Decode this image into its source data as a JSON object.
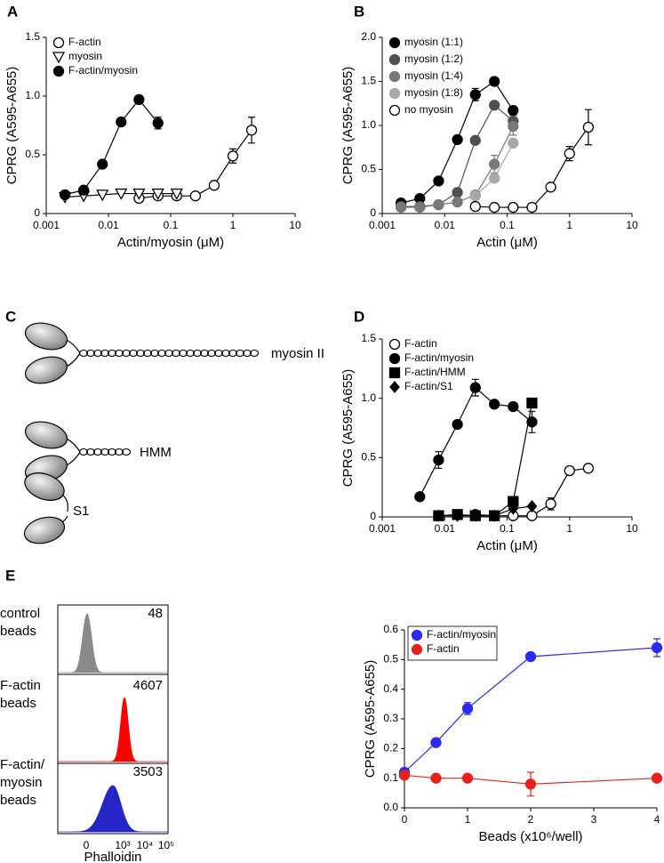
{
  "chart_data": [
    {
      "panel": "A",
      "type": "line",
      "xscale": "log",
      "xlabel": "Actin/myosin (μM)",
      "ylabel": "CPRG (A595-A655)",
      "xlim": [
        0.001,
        10
      ],
      "xticks": [
        0.001,
        0.01,
        0.1,
        1,
        10
      ],
      "ylim": [
        0,
        1.5
      ],
      "yticks": [
        0,
        0.5,
        {
          "value": 1,
          "label": "1.0"
        },
        1.5
      ],
      "legend": "upper left",
      "series": [
        {
          "name": "F-actin",
          "marker": "circle-open",
          "color": "#000000",
          "x": [
            0.031,
            0.0625,
            0.125,
            0.25,
            0.5,
            1,
            2
          ],
          "values": [
            0.13,
            0.15,
            0.15,
            0.15,
            0.24,
            0.49,
            0.71
          ],
          "errors": [
            null,
            null,
            null,
            null,
            null,
            0.06,
            0.11
          ]
        },
        {
          "name": "myosin",
          "marker": "triangle-open",
          "color": "#000000",
          "x": [
            0.002,
            0.004,
            0.008,
            0.016,
            0.031,
            0.0625,
            0.125
          ],
          "values": [
            0.14,
            0.15,
            0.16,
            0.17,
            0.17,
            0.17,
            0.17
          ],
          "errors": [
            null,
            null,
            null,
            null,
            null,
            null,
            null
          ]
        },
        {
          "name": "F-actin/myosin",
          "marker": "circle",
          "color": "#000000",
          "x": [
            0.002,
            0.004,
            0.008,
            0.016,
            0.031,
            0.0625
          ],
          "values": [
            0.16,
            0.2,
            0.42,
            0.78,
            0.97,
            0.77
          ],
          "errors": [
            null,
            null,
            null,
            null,
            null,
            0.05
          ]
        }
      ]
    },
    {
      "panel": "B",
      "type": "line",
      "xscale": "log",
      "xlabel": "Actin (μM)",
      "ylabel": "CPRG (A595-A655)",
      "xlim": [
        0.001,
        10
      ],
      "xticks": [
        0.001,
        0.01,
        0.1,
        1,
        10
      ],
      "ylim": [
        0,
        2
      ],
      "yticks": [
        0,
        0.5,
        {
          "value": 1,
          "label": "1.0"
        },
        1.5,
        {
          "value": 2,
          "label": "2.0"
        }
      ],
      "legend": "upper left",
      "series": [
        {
          "name": "myosin (1:1)",
          "marker": "circle",
          "color": "#000000",
          "x": [
            0.002,
            0.004,
            0.008,
            0.016,
            0.031,
            0.0625,
            0.125
          ],
          "values": [
            0.12,
            0.17,
            0.37,
            0.84,
            1.35,
            1.5,
            1.17
          ],
          "errors": [
            null,
            null,
            null,
            null,
            0.07,
            null,
            0.05
          ]
        },
        {
          "name": "myosin (1:2)",
          "marker": "circle",
          "color": "#505050",
          "x": [
            0.002,
            0.004,
            0.008,
            0.016,
            0.031,
            0.0625,
            0.125
          ],
          "values": [
            0.08,
            0.08,
            0.1,
            0.24,
            0.83,
            1.23,
            1.05
          ],
          "errors": [
            null,
            null,
            null,
            null,
            null,
            null,
            0.08
          ]
        },
        {
          "name": "myosin (1:4)",
          "marker": "circle",
          "color": "#787878",
          "x": [
            0.002,
            0.004,
            0.008,
            0.016,
            0.031,
            0.0625,
            0.125
          ],
          "values": [
            0.07,
            0.07,
            0.1,
            0.13,
            0.21,
            0.56,
            0.99
          ],
          "errors": [
            null,
            null,
            null,
            null,
            null,
            0.1,
            0.1
          ]
        },
        {
          "name": "myosin (1:8)",
          "marker": "circle",
          "color": "#a8a8a8",
          "x": [
            0.031,
            0.0625,
            0.125
          ],
          "values": [
            0.2,
            0.4,
            0.8
          ],
          "errors": [
            null,
            null,
            null
          ]
        },
        {
          "name": "no myosin",
          "marker": "circle-open",
          "color": "#000000",
          "x": [
            0.031,
            0.0625,
            0.125,
            0.25,
            0.5,
            1,
            2
          ],
          "values": [
            0.08,
            0.07,
            0.07,
            0.07,
            0.3,
            0.68,
            0.98
          ],
          "errors": [
            null,
            null,
            null,
            null,
            null,
            0.08,
            0.2
          ]
        }
      ]
    },
    {
      "panel": "D",
      "type": "line",
      "xscale": "log",
      "xlabel": "Actin (μM)",
      "ylabel": "CPRG (A595-A655)",
      "xlim": [
        0.001,
        10
      ],
      "xticks": [
        0.001,
        0.01,
        0.1,
        1,
        10
      ],
      "ylim": [
        0,
        1.5
      ],
      "yticks": [
        0,
        0.5,
        {
          "value": 1,
          "label": "1.0"
        },
        1.5
      ],
      "legend": "upper left",
      "series": [
        {
          "name": "F-actin",
          "marker": "circle-open",
          "color": "#000000",
          "x": [
            0.031,
            0.0625,
            0.125,
            0.25,
            0.5,
            1,
            2
          ],
          "values": [
            0.02,
            0.01,
            0.01,
            0.01,
            0.11,
            0.39,
            0.41
          ],
          "errors": [
            null,
            null,
            null,
            null,
            0.05,
            null,
            null
          ]
        },
        {
          "name": "F-actin/myosin",
          "marker": "circle",
          "color": "#000000",
          "x": [
            0.004,
            0.008,
            0.016,
            0.031,
            0.0625,
            0.125,
            0.25
          ],
          "values": [
            0.17,
            0.48,
            0.78,
            1.09,
            0.95,
            0.93,
            0.8
          ],
          "errors": [
            null,
            0.07,
            null,
            0.07,
            null,
            null,
            0.09
          ]
        },
        {
          "name": "F-actin/HMM",
          "marker": "square",
          "color": "#000000",
          "x": [
            0.008,
            0.016,
            0.031,
            0.0625,
            0.125,
            0.25
          ],
          "values": [
            0.01,
            0.02,
            0.01,
            0.01,
            0.13,
            0.96
          ],
          "errors": [
            null,
            null,
            null,
            null,
            null,
            null
          ]
        },
        {
          "name": "F-actin/S1",
          "marker": "diamond",
          "color": "#000000",
          "x": [
            0.008,
            0.016,
            0.031,
            0.0625,
            0.125,
            0.25
          ],
          "values": [
            0.01,
            0.01,
            0.01,
            0.01,
            0.07,
            0.09
          ],
          "errors": [
            null,
            null,
            null,
            null,
            null,
            null
          ]
        }
      ]
    },
    {
      "type": "line",
      "xscale": "linear",
      "xlabel": "Beads (x10⁶/well)",
      "ylabel": "CPRG (A595-A655)",
      "xlim": [
        0,
        4
      ],
      "xticks": [
        0,
        1,
        2,
        3,
        4
      ],
      "ylim": [
        0,
        0.6
      ],
      "yticks": [
        {
          "value": 0,
          "label": "0.0"
        },
        0.1,
        0.2,
        0.3,
        0.4,
        0.5,
        0.6
      ],
      "legend": "upper left",
      "legend_frame": true,
      "series": [
        {
          "name": "F-actin/myosin",
          "marker": "circle",
          "color": "#2a2af0",
          "x": [
            0,
            0.5,
            1,
            2,
            4
          ],
          "values": [
            0.12,
            0.22,
            0.335,
            0.51,
            0.54
          ],
          "errors": [
            null,
            null,
            0.02,
            null,
            0.03
          ]
        },
        {
          "name": "F-actin",
          "marker": "circle",
          "color": "#e8201c",
          "x": [
            0,
            0.5,
            1,
            2,
            4
          ],
          "values": [
            0.11,
            0.1,
            0.1,
            0.08,
            0.1
          ],
          "errors": [
            null,
            null,
            null,
            0.04,
            null
          ]
        }
      ]
    }
  ],
  "diagram": {
    "panel": "C",
    "labels": [
      "myosin II",
      "HMM",
      "S1"
    ]
  },
  "flow_panel": {
    "panel": "E",
    "xlabel": "Phalloidin",
    "xtick_labels": [
      "0",
      "10³",
      "10⁴",
      "10⁵"
    ],
    "rows": [
      {
        "label": [
          "control",
          "beads"
        ],
        "value": 48,
        "color": "#8a8a8a"
      },
      {
        "label": [
          "F-actin",
          "beads"
        ],
        "value": 4607,
        "color": "#ff0000"
      },
      {
        "label": [
          "F-actin/",
          "myosin",
          "beads"
        ],
        "value": 3503,
        "color": "#2626c8"
      }
    ]
  }
}
